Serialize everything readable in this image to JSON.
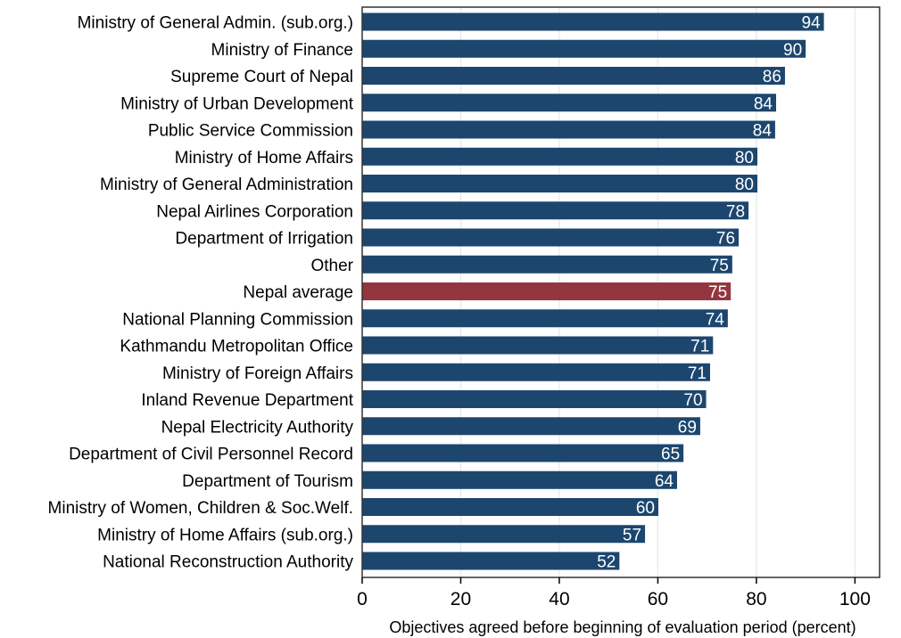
{
  "chart_data": {
    "type": "bar",
    "orientation": "horizontal",
    "categories": [
      "Ministry of General Admin. (sub.org.)",
      "Ministry of Finance",
      "Supreme Court of Nepal",
      "Ministry of Urban Development",
      "Public Service Commission",
      "Ministry of Home Affairs",
      "Ministry of General Administration",
      "Nepal Airlines Corporation",
      "Department of Irrigation",
      "Other",
      "Nepal average",
      "National Planning Commission",
      "Kathmandu Metropolitan Office",
      "Ministry of Foreign Affairs",
      "Inland Revenue Department",
      "Nepal Electricity Authority",
      "Department of Civil Personnel Record",
      "Department of Tourism",
      "Ministry of Women, Children & Soc.Welf.",
      "Ministry of Home Affairs (sub.org.)",
      "National Reconstruction Authority"
    ],
    "values": [
      93.7,
      90.0,
      85.8,
      84.0,
      83.8,
      80.2,
      80.2,
      78.4,
      76.4,
      75.1,
      74.8,
      74.2,
      71.2,
      70.6,
      69.8,
      68.6,
      65.2,
      63.9,
      60.1,
      57.4,
      52.2
    ],
    "data_labels": [
      "94",
      "90",
      "86",
      "84",
      "84",
      "80",
      "80",
      "78",
      "76",
      "75",
      "75",
      "74",
      "71",
      "71",
      "70",
      "69",
      "65",
      "64",
      "60",
      "57",
      "52"
    ],
    "highlight_category": "Nepal average",
    "xlabel": "Objectives agreed before beginning of evaluation period (percent)",
    "xlim": [
      0,
      105
    ],
    "xticks": [
      0,
      20,
      40,
      60,
      80,
      100
    ],
    "xtick_labels": [
      "0",
      "20",
      "40",
      "60",
      "80",
      "100"
    ],
    "grid": true,
    "colors": {
      "bar": "#1c466e",
      "highlight": "#943540",
      "grid": "#e4eeee"
    }
  }
}
